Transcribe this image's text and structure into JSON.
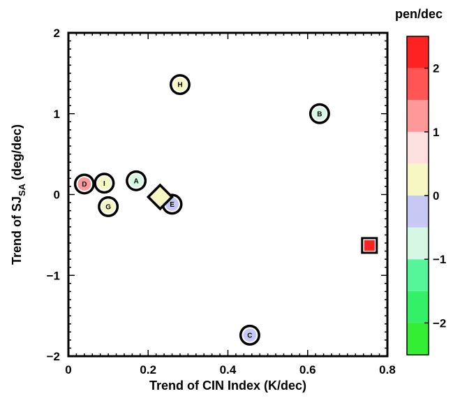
{
  "chart_data": {
    "type": "scatter",
    "xlabel": "Trend of CIN Index (K/dec)",
    "ylabel_main": "Trend of SJ",
    "ylabel_sub": "SA",
    "ylabel_tail": " (deg/dec)",
    "xlim": [
      0,
      0.8
    ],
    "ylim": [
      -2,
      2
    ],
    "xticks": [
      0,
      0.2,
      0.4,
      0.6,
      0.8
    ],
    "xtick_labels": [
      "0",
      "0.2",
      "0.4",
      "0.6",
      "0.8"
    ],
    "yticks": [
      -2,
      -1,
      0,
      1,
      2
    ],
    "ytick_labels": [
      "−2",
      "−1",
      "0",
      "1",
      "2"
    ],
    "grid": false,
    "points": [
      {
        "label": "A",
        "x": 0.17,
        "y": 0.17,
        "value": -0.75,
        "marker": "circle"
      },
      {
        "label": "B",
        "x": 0.63,
        "y": 1.0,
        "value": -0.75,
        "marker": "circle"
      },
      {
        "label": "C",
        "x": 0.455,
        "y": -1.74,
        "value": -0.25,
        "marker": "circle"
      },
      {
        "label": "D",
        "x": 0.04,
        "y": 0.13,
        "value": 1.25,
        "marker": "circle"
      },
      {
        "label": "E",
        "x": 0.26,
        "y": -0.12,
        "value": -0.25,
        "marker": "circle"
      },
      {
        "label": "G",
        "x": 0.1,
        "y": -0.15,
        "value": 0.25,
        "marker": "circle"
      },
      {
        "label": "H",
        "x": 0.28,
        "y": 1.36,
        "value": 0.25,
        "marker": "circle"
      },
      {
        "label": "I",
        "x": 0.09,
        "y": 0.14,
        "value": 0.25,
        "marker": "circle"
      },
      {
        "label": "",
        "x": 0.23,
        "y": -0.03,
        "value": 0.25,
        "marker": "diamond"
      },
      {
        "label": "",
        "x": 0.755,
        "y": -0.63,
        "value": 2.25,
        "marker": "square"
      }
    ],
    "colorbar": {
      "title": "pen/dec",
      "range": [
        -2.5,
        2.5
      ],
      "ticks": [
        -2,
        -1,
        0,
        1,
        2
      ],
      "tick_labels": [
        "−2",
        "−1",
        "0",
        "1",
        "2"
      ],
      "colors": [
        "#33ee33",
        "#33f066",
        "#55f599",
        "#d6f7e4",
        "#c8c8f4",
        "#f7f7c3",
        "#fde0e0",
        "#ff9999",
        "#ff5555",
        "#ff2222"
      ]
    }
  }
}
